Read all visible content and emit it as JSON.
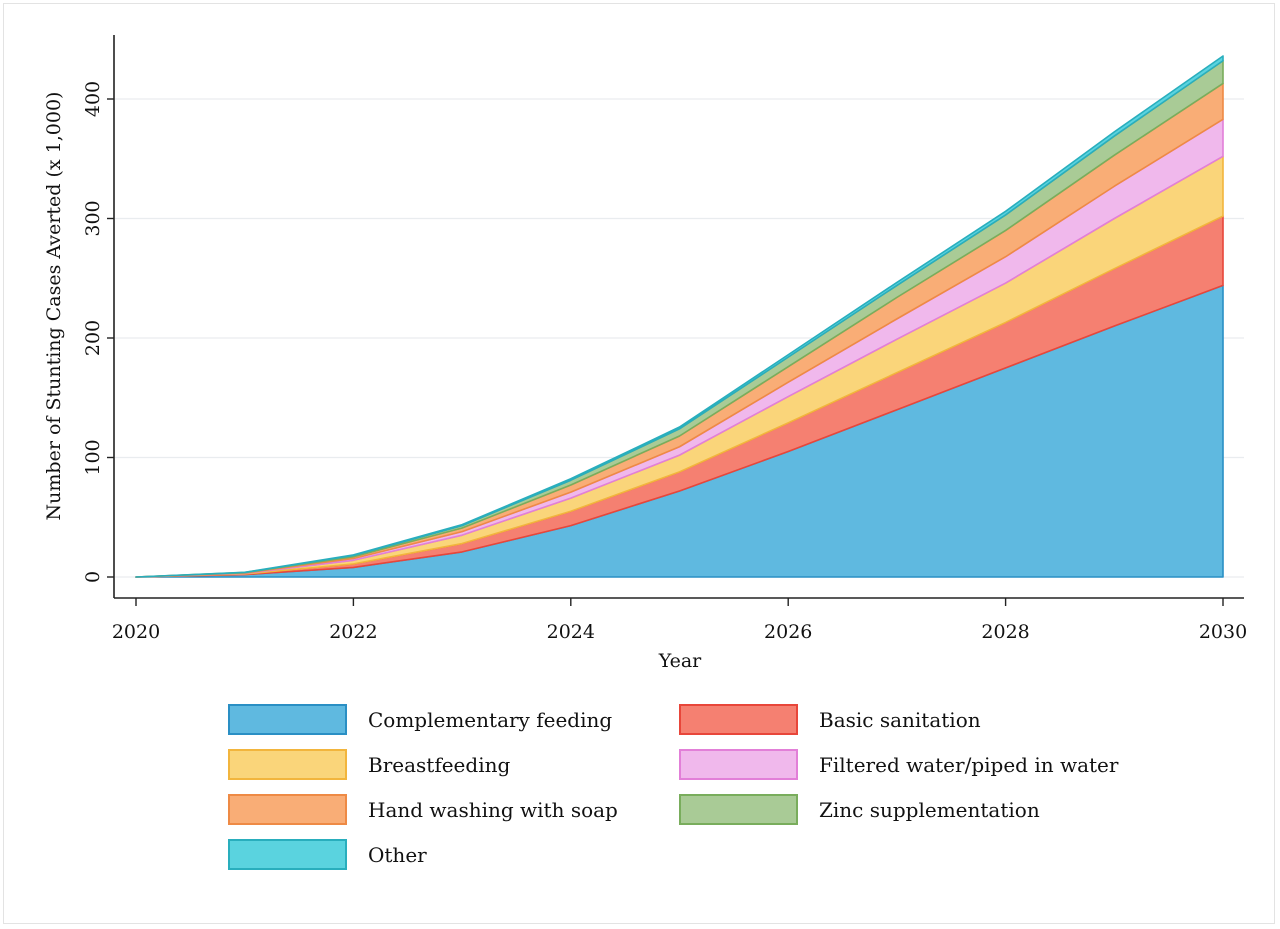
{
  "chart_data": {
    "type": "area",
    "stacked": true,
    "x": [
      2020,
      2021,
      2022,
      2023,
      2024,
      2025,
      2026,
      2027,
      2028,
      2029,
      2030
    ],
    "series": [
      {
        "name": "Complementary feeding",
        "color": "#5fb9e0",
        "stroke": "#2a8fc4",
        "values": [
          0,
          2,
          8,
          21,
          43,
          72,
          105,
          140,
          175,
          210,
          244
        ]
      },
      {
        "name": "Basic sanitation",
        "color": "#f58071",
        "stroke": "#e8463a",
        "values": [
          0,
          0.5,
          3,
          7,
          12,
          16,
          24,
          31,
          38,
          48,
          58
        ]
      },
      {
        "name": "Breastfeeding",
        "color": "#fad57a",
        "stroke": "#f2b53d",
        "values": [
          0,
          0.5,
          3,
          7,
          11,
          14,
          22,
          28,
          33,
          42,
          50
        ]
      },
      {
        "name": "Filtered water/piped in water",
        "color": "#f0b8ec",
        "stroke": "#e27fd8",
        "values": [
          0,
          0.3,
          1.5,
          3,
          5,
          7,
          12,
          17,
          22,
          27,
          31
        ]
      },
      {
        "name": "Hand washing with soap",
        "color": "#f9ad76",
        "stroke": "#ee8a45",
        "values": [
          0,
          0.3,
          1.5,
          3,
          6,
          9,
          13,
          18,
          22,
          26,
          30
        ]
      },
      {
        "name": "Zinc supplementation",
        "color": "#a9cb96",
        "stroke": "#79ad5c",
        "values": [
          0,
          0.2,
          1,
          2,
          4,
          6,
          8,
          10,
          13,
          16,
          19
        ]
      },
      {
        "name": "Other",
        "color": "#5ad3df",
        "stroke": "#29aebd",
        "values": [
          0,
          0.1,
          0.5,
          0.8,
          1.2,
          1.5,
          2,
          2.5,
          3,
          3.5,
          4
        ]
      }
    ],
    "xlabel": "Year",
    "ylabel": "Number of Stunting Cases Averted (x 1,000)",
    "xlim": [
      2020,
      2030
    ],
    "ylim": [
      0,
      450
    ],
    "xticks": [
      2020,
      2022,
      2024,
      2026,
      2028,
      2030
    ],
    "yticks": [
      0,
      100,
      200,
      300,
      400
    ],
    "grid": "horizontal",
    "legend": {
      "placement": "bottom",
      "columns": 2,
      "order": [
        "Complementary feeding",
        "Basic sanitation",
        "Breastfeeding",
        "Filtered water/piped in water",
        "Hand washing with soap",
        "Zinc supplementation",
        "Other"
      ]
    }
  }
}
